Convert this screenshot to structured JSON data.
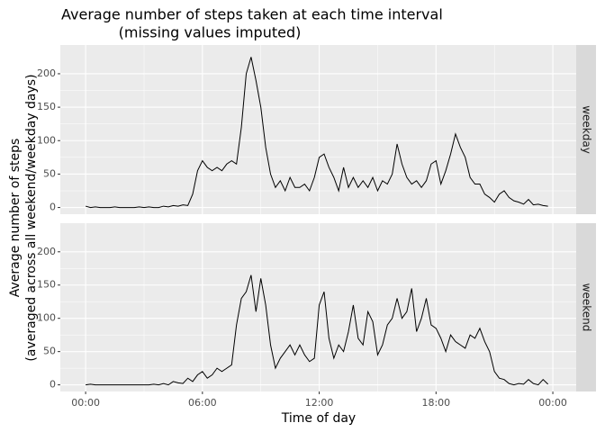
{
  "chart_data": {
    "type": "line",
    "title": "Average number of steps taken at each time interval",
    "subtitle": "(missing values imputed)",
    "xlabel": "Time of day",
    "ylabel": [
      "Average number of steps",
      "(averaged across all weekend/weekday days)"
    ],
    "x": [
      0,
      0.25,
      0.5,
      0.75,
      1,
      1.25,
      1.5,
      1.75,
      2,
      2.25,
      2.5,
      2.75,
      3,
      3.25,
      3.5,
      3.75,
      4,
      4.25,
      4.5,
      4.75,
      5,
      5.25,
      5.5,
      5.75,
      6,
      6.25,
      6.5,
      6.75,
      7,
      7.25,
      7.5,
      7.75,
      8,
      8.25,
      8.5,
      8.75,
      9,
      9.25,
      9.5,
      9.75,
      10,
      10.25,
      10.5,
      10.75,
      11,
      11.25,
      11.5,
      11.75,
      12,
      12.25,
      12.5,
      12.75,
      13,
      13.25,
      13.5,
      13.75,
      14,
      14.25,
      14.5,
      14.75,
      15,
      15.25,
      15.5,
      15.75,
      16,
      16.25,
      16.5,
      16.75,
      17,
      17.25,
      17.5,
      17.75,
      18,
      18.25,
      18.5,
      18.75,
      19,
      19.25,
      19.5,
      19.75,
      20,
      20.25,
      20.5,
      20.75,
      21,
      21.25,
      21.5,
      21.75,
      22,
      22.25,
      22.5,
      22.75,
      23,
      23.25,
      23.5,
      23.75
    ],
    "panels": [
      {
        "name": "weekday",
        "color": "#000000",
        "values": [
          2,
          0,
          1,
          0,
          0,
          0,
          1,
          0,
          0,
          0,
          0,
          1,
          0,
          1,
          0,
          0,
          2,
          1,
          3,
          2,
          4,
          3,
          20,
          55,
          70,
          60,
          55,
          60,
          55,
          65,
          70,
          65,
          120,
          200,
          225,
          190,
          150,
          90,
          50,
          30,
          40,
          25,
          45,
          30,
          30,
          35,
          25,
          45,
          75,
          80,
          60,
          45,
          25,
          60,
          30,
          45,
          30,
          40,
          30,
          45,
          25,
          40,
          35,
          50,
          95,
          65,
          45,
          35,
          40,
          30,
          40,
          65,
          70,
          35,
          55,
          80,
          110,
          90,
          75,
          45,
          35,
          35,
          20,
          15,
          8,
          20,
          25,
          15,
          10,
          8,
          5,
          12,
          4,
          5,
          3,
          2
        ]
      },
      {
        "name": "weekend",
        "color": "#000000",
        "values": [
          0,
          1,
          0,
          0,
          0,
          0,
          0,
          0,
          0,
          0,
          0,
          0,
          0,
          0,
          1,
          0,
          2,
          0,
          5,
          3,
          2,
          10,
          5,
          15,
          20,
          10,
          15,
          25,
          20,
          25,
          30,
          90,
          130,
          140,
          165,
          110,
          160,
          120,
          60,
          25,
          40,
          50,
          60,
          45,
          60,
          45,
          35,
          40,
          120,
          140,
          70,
          40,
          60,
          50,
          80,
          120,
          70,
          60,
          110,
          95,
          45,
          60,
          90,
          100,
          130,
          100,
          110,
          145,
          80,
          100,
          130,
          90,
          85,
          70,
          50,
          75,
          65,
          60,
          55,
          75,
          70,
          85,
          65,
          50,
          20,
          10,
          8,
          2,
          0,
          2,
          1,
          8,
          2,
          0,
          8,
          1
        ]
      }
    ],
    "xlim": [
      -1.3,
      25.2
    ],
    "xticks": [
      {
        "value": 0,
        "label": "00:00"
      },
      {
        "value": 6,
        "label": "06:00"
      },
      {
        "value": 12,
        "label": "12:00"
      },
      {
        "value": 18,
        "label": "18:00"
      },
      {
        "value": 24,
        "label": "00:00"
      }
    ],
    "ylim": [
      -10,
      243
    ],
    "yticks": [
      0,
      50,
      100,
      150,
      200
    ],
    "grid": true
  }
}
